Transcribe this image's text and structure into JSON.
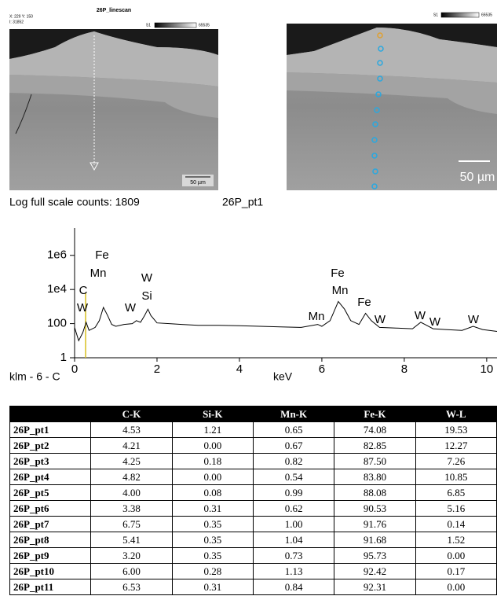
{
  "images": [
    {
      "title": "26P_linescan",
      "coords": "X: 229 Y: 150",
      "intensity": "I: 31852",
      "scale_min": "S1",
      "scale_max": "65535",
      "scale_bar": "50 µm"
    },
    {
      "scale_min": "S1",
      "scale_max": "65535",
      "scale_bar": "50 µm"
    }
  ],
  "spectrum_header": {
    "counts": "Log full scale counts: 1809",
    "point": "26P_pt1"
  },
  "chart_data": {
    "type": "line",
    "subtitle": "klm - 6 - C",
    "x_label": "keV",
    "log_y": true,
    "xlim": [
      0,
      10.25
    ],
    "xticks": [
      0,
      2,
      4,
      6,
      8,
      10
    ],
    "ylim": [
      1,
      40000000
    ],
    "yticks": [
      1,
      100,
      {
        "value": 10000,
        "label": "1e4"
      },
      {
        "value": 1000000,
        "label": "1e6"
      }
    ],
    "x": [
      0,
      0.1,
      0.2,
      0.28,
      0.35,
      0.5,
      0.6,
      0.7,
      0.8,
      0.9,
      1.0,
      1.2,
      1.4,
      1.5,
      1.6,
      1.7,
      1.78,
      1.85,
      2.0,
      2.3,
      2.6,
      3.0,
      3.5,
      4.0,
      4.5,
      5.0,
      5.5,
      5.9,
      6.0,
      6.2,
      6.4,
      6.55,
      6.7,
      6.9,
      7.06,
      7.2,
      7.4,
      7.8,
      8.2,
      8.4,
      8.5,
      8.7,
      9.0,
      9.4,
      9.67,
      9.9,
      10.25
    ],
    "series": [
      {
        "color": "#000000",
        "values": [
          60,
          10,
          30,
          120,
          40,
          60,
          150,
          900,
          300,
          90,
          70,
          90,
          100,
          150,
          120,
          300,
          700,
          300,
          110,
          100,
          90,
          80,
          80,
          75,
          70,
          65,
          60,
          90,
          70,
          150,
          2000,
          700,
          150,
          90,
          400,
          150,
          60,
          55,
          50,
          120,
          90,
          50,
          45,
          40,
          70,
          45,
          35
        ]
      }
    ],
    "annotations": [
      "C",
      "W",
      "Fe",
      "Mn",
      "W",
      "W",
      "Si",
      "Mn",
      "Fe",
      "Mn",
      "Fe",
      "W",
      "W",
      "W",
      "W"
    ]
  },
  "table": {
    "columns": [
      "C-K",
      "Si-K",
      "Mn-K",
      "Fe-K",
      "W-L"
    ],
    "rows": [
      {
        "label": "26P_pt1",
        "values": [
          "4.53",
          "1.21",
          "0.65",
          "74.08",
          "19.53"
        ]
      },
      {
        "label": "26P_pt2",
        "values": [
          "4.21",
          "0.00",
          "0.67",
          "82.85",
          "12.27"
        ]
      },
      {
        "label": "26P_pt3",
        "values": [
          "4.25",
          "0.18",
          "0.82",
          "87.50",
          "7.26"
        ]
      },
      {
        "label": "26P_pt4",
        "values": [
          "4.82",
          "0.00",
          "0.54",
          "83.80",
          "10.85"
        ]
      },
      {
        "label": "26P_pt5",
        "values": [
          "4.00",
          "0.08",
          "0.99",
          "88.08",
          "6.85"
        ]
      },
      {
        "label": "26P_pt6",
        "values": [
          "3.38",
          "0.31",
          "0.62",
          "90.53",
          "5.16"
        ]
      },
      {
        "label": "26P_pt7",
        "values": [
          "6.75",
          "0.35",
          "1.00",
          "91.76",
          "0.14"
        ]
      },
      {
        "label": "26P_pt8",
        "values": [
          "5.41",
          "0.35",
          "1.04",
          "91.68",
          "1.52"
        ]
      },
      {
        "label": "26P_pt9",
        "values": [
          "3.20",
          "0.35",
          "0.73",
          "95.73",
          "0.00"
        ]
      },
      {
        "label": "26P_pt10",
        "values": [
          "6.00",
          "0.28",
          "1.13",
          "92.42",
          "0.17"
        ]
      },
      {
        "label": "26P_pt11",
        "values": [
          "6.53",
          "0.31",
          "0.84",
          "92.31",
          "0.00"
        ]
      }
    ]
  }
}
